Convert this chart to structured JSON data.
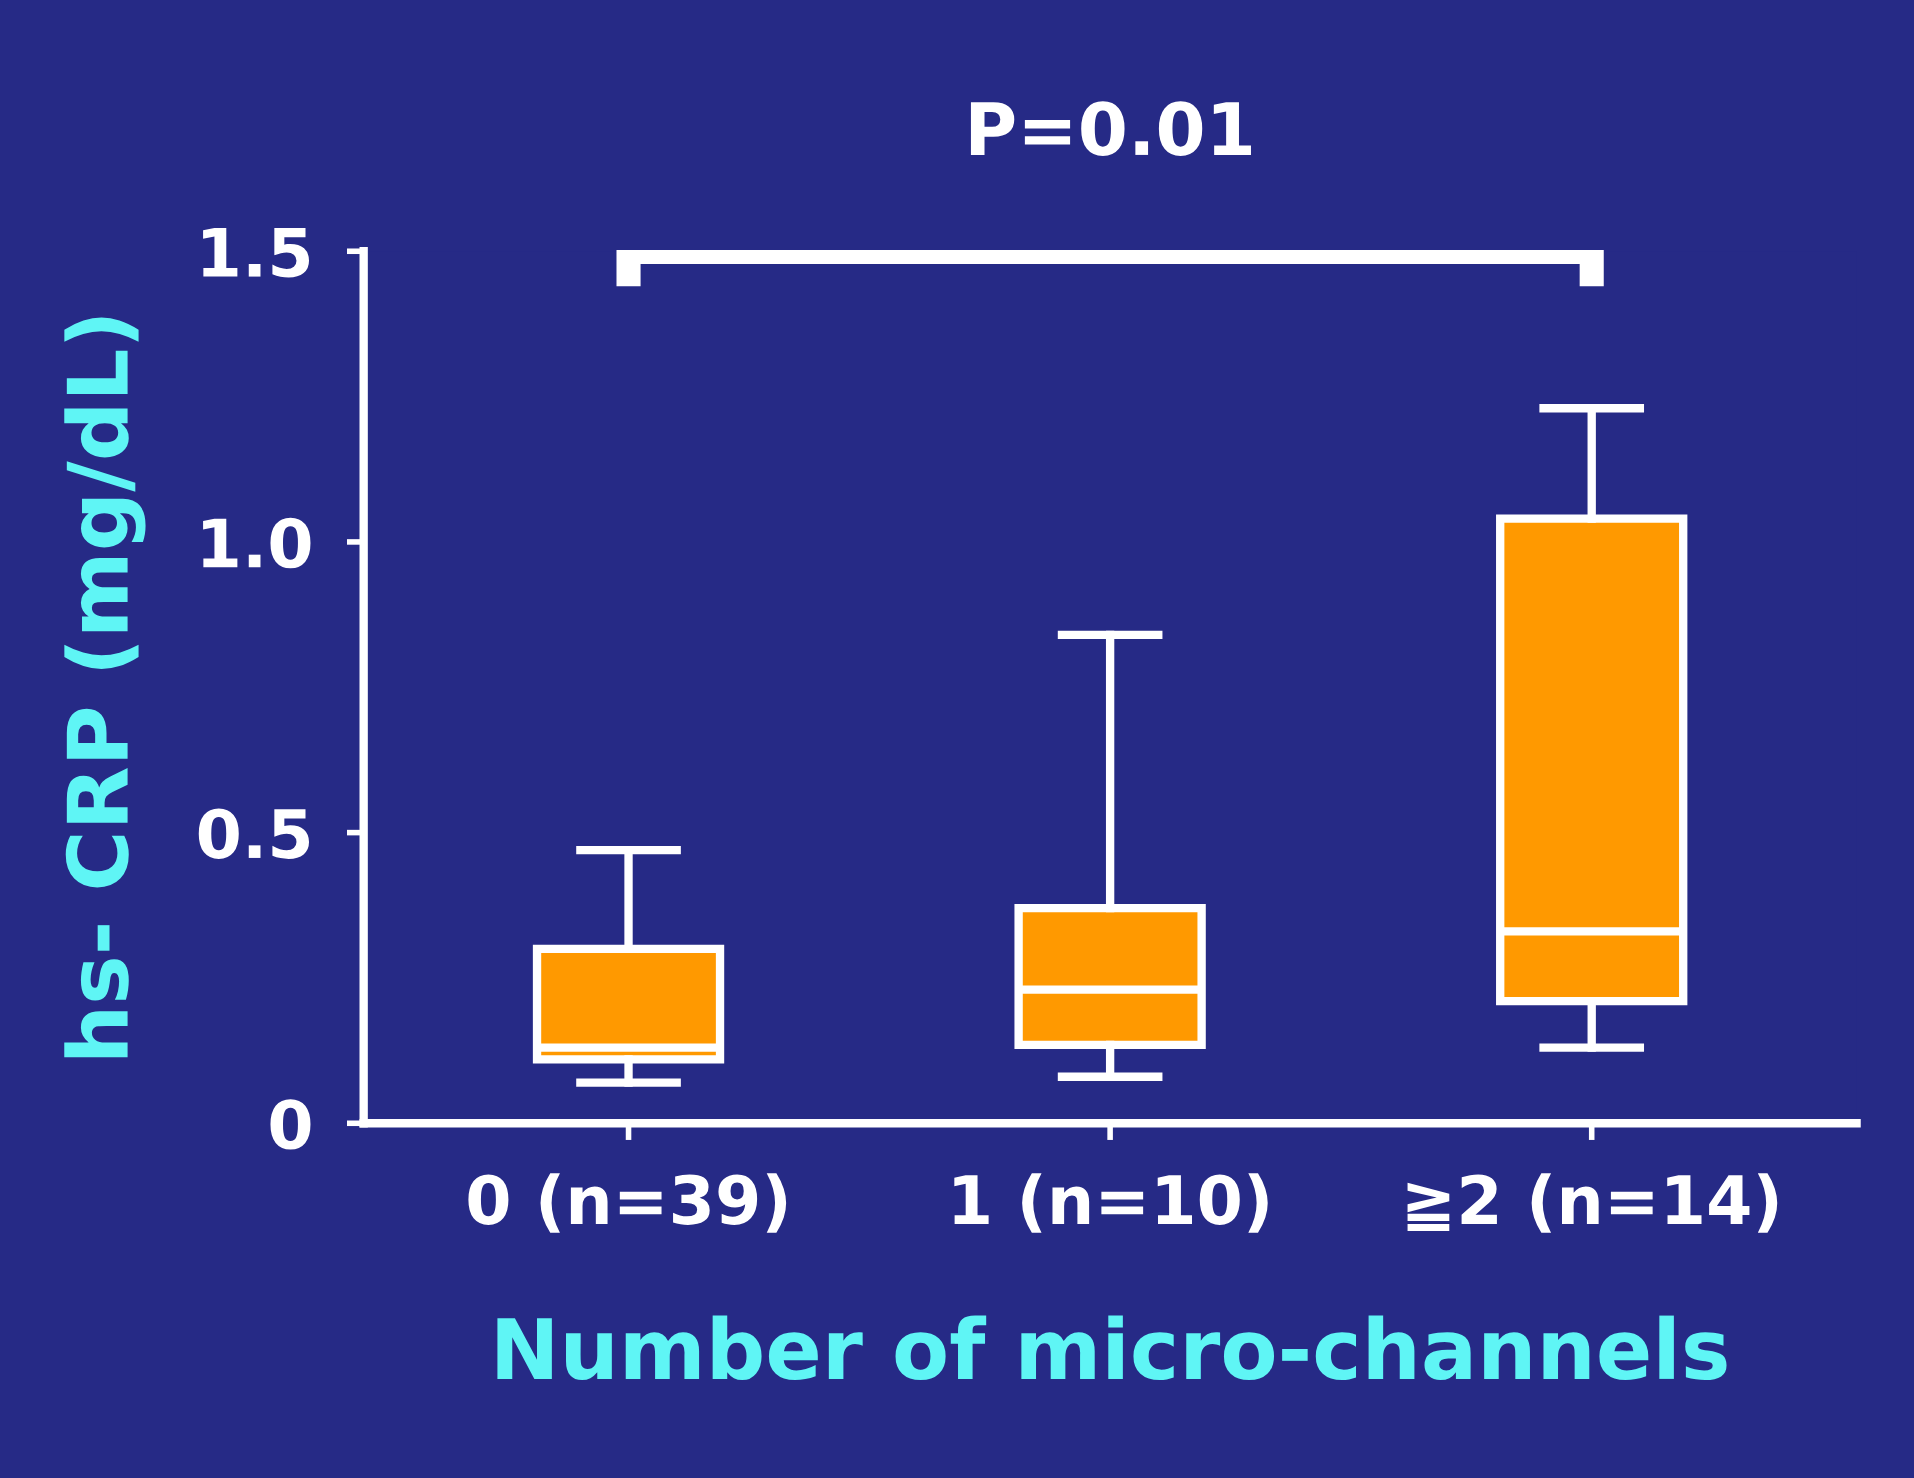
{
  "chart_data": {
    "type": "box",
    "categories": [
      "0 (n=39)",
      "1 (n=10)",
      "≧2 (n=14)"
    ],
    "boxes": [
      {
        "low": 0.07,
        "q1": 0.11,
        "median": 0.13,
        "q3": 0.3,
        "high": 0.47
      },
      {
        "low": 0.08,
        "q1": 0.135,
        "median": 0.23,
        "q3": 0.37,
        "high": 0.84
      },
      {
        "low": 0.13,
        "q1": 0.21,
        "median": 0.33,
        "q3": 1.04,
        "high": 1.23
      }
    ],
    "color": "#ff9900",
    "ylim": [
      0,
      1.5
    ],
    "yticks": [
      0,
      {
        "value": 0.5,
        "label": "0.5"
      },
      {
        "value": 1.0,
        "label": "1.0"
      },
      1.5
    ],
    "ylabel": "hs- CRP (mg/dL)",
    "xlabel": "Number of micro-channels",
    "annotations": [
      "P=0.01"
    ],
    "grid": false,
    "legend": false
  }
}
